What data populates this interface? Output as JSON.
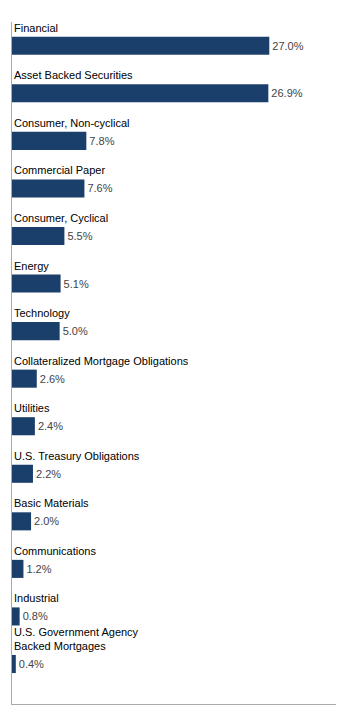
{
  "chart_data": {
    "type": "bar",
    "orientation": "horizontal",
    "categories": [
      "Financial",
      "Asset Backed Securities",
      "Consumer, Non-cyclical",
      "Commercial Paper",
      "Consumer, Cyclical",
      "Energy",
      "Technology",
      "Collateralized Mortgage Obligations",
      "Utilities",
      "U.S. Treasury Obligations",
      "Basic Materials",
      "Communications",
      "Industrial",
      "U.S. Government Agency\nBacked Mortgages"
    ],
    "values": [
      27.0,
      26.9,
      7.8,
      7.6,
      5.5,
      5.1,
      5.0,
      2.6,
      2.4,
      2.2,
      2.0,
      1.2,
      0.8,
      0.4
    ],
    "value_labels": [
      "27.0%",
      "26.9%",
      "7.8%",
      "7.6%",
      "5.5%",
      "5.1%",
      "5.0%",
      "2.6%",
      "2.4%",
      "2.2%",
      "2.0%",
      "1.2%",
      "0.8%",
      "0.4%"
    ],
    "color": "#1b3f6b",
    "xlim": [
      0,
      34
    ],
    "data_labels": true,
    "tick_labels": false,
    "grid": false
  }
}
